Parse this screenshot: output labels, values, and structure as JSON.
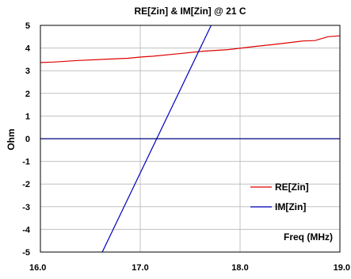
{
  "chart_data": {
    "type": "line",
    "title": "RE[Zin] & IM[Zin] @ 21 C",
    "xlabel": "Freq (MHz)",
    "ylabel": "Ohm",
    "xlim": [
      16.0,
      19.0
    ],
    "ylim": [
      -5,
      5
    ],
    "x_ticks": [
      "16.0",
      "17.0",
      "18.0",
      "19.0"
    ],
    "y_ticks": [
      "5",
      "4",
      "3",
      "2",
      "1",
      "0",
      "-1",
      "-2",
      "-3",
      "-4",
      "-5"
    ],
    "grid": true,
    "legend_position": "lower-right",
    "series": [
      {
        "name": "RE[Zin]",
        "color": "#e00000",
        "x": [
          16.0,
          16.13,
          16.38,
          16.63,
          16.88,
          17.0,
          17.13,
          17.38,
          17.63,
          17.88,
          18.13,
          18.38,
          18.63,
          18.75,
          18.88,
          19.0
        ],
        "y": [
          3.36,
          3.38,
          3.45,
          3.5,
          3.55,
          3.6,
          3.64,
          3.75,
          3.86,
          3.93,
          4.06,
          4.18,
          4.31,
          4.33,
          4.5,
          4.54
        ]
      },
      {
        "name": "IM[Zin]",
        "color": "#0000c0",
        "x": [
          16.62,
          17.71
        ],
        "y": [
          -5.0,
          5.0
        ]
      },
      {
        "name": "",
        "color": "#000080",
        "x": [
          16.0,
          19.0
        ],
        "y": [
          0.0,
          0.0
        ]
      }
    ]
  }
}
